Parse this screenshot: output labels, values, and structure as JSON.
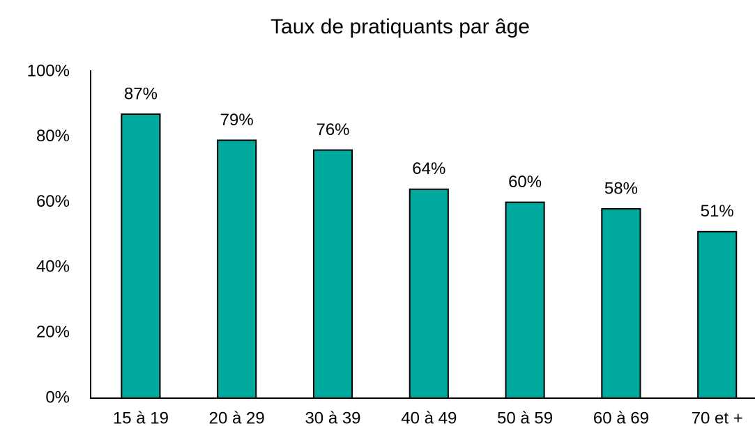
{
  "chart_data": {
    "type": "bar",
    "title": "Taux de pratiquants par âge",
    "categories": [
      "15 à 19",
      "20 à 29",
      "30 à 39",
      "40 à 49",
      "50 à 59",
      "60 à 69",
      "70 et +"
    ],
    "values": [
      87,
      79,
      76,
      64,
      60,
      58,
      51
    ],
    "value_labels": [
      "87%",
      "79%",
      "76%",
      "64%",
      "60%",
      "58%",
      "51%"
    ],
    "color": "#00a99d",
    "ylim": [
      0,
      100
    ],
    "yticks": [
      {
        "value": 0,
        "label": "0%"
      },
      {
        "value": 20,
        "label": "20%"
      },
      {
        "value": 40,
        "label": "40%"
      },
      {
        "value": 60,
        "label": "60%"
      },
      {
        "value": 80,
        "label": "80%"
      },
      {
        "value": 100,
        "label": "100%"
      }
    ],
    "grid": false
  }
}
